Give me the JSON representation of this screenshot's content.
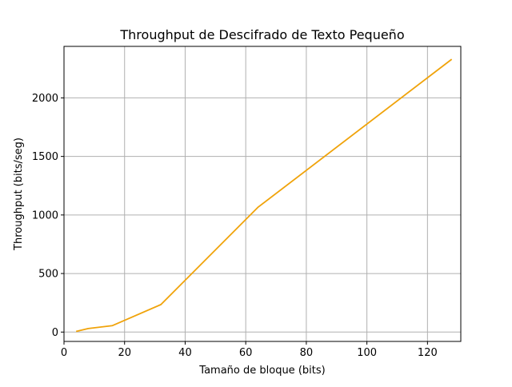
{
  "chart_data": {
    "type": "line",
    "title": "Throughput de Descifrado de Texto Pequeño",
    "xlabel": "Tamaño de bloque (bits)",
    "ylabel": "Throughput (bits/seg)",
    "xlim": [
      0,
      131
    ],
    "ylim": [
      -80,
      2440
    ],
    "xticks": [
      0,
      20,
      40,
      60,
      80,
      100,
      120
    ],
    "yticks": [
      0,
      500,
      1000,
      1500,
      2000
    ],
    "grid": true,
    "colors": {
      "line": "#f0a30a",
      "grid": "#b0b0b0",
      "axes": "#000000"
    },
    "series": [
      {
        "x": [
          4,
          8,
          16,
          32,
          64,
          128
        ],
        "y": [
          5,
          30,
          55,
          235,
          1065,
          2330
        ]
      }
    ]
  }
}
